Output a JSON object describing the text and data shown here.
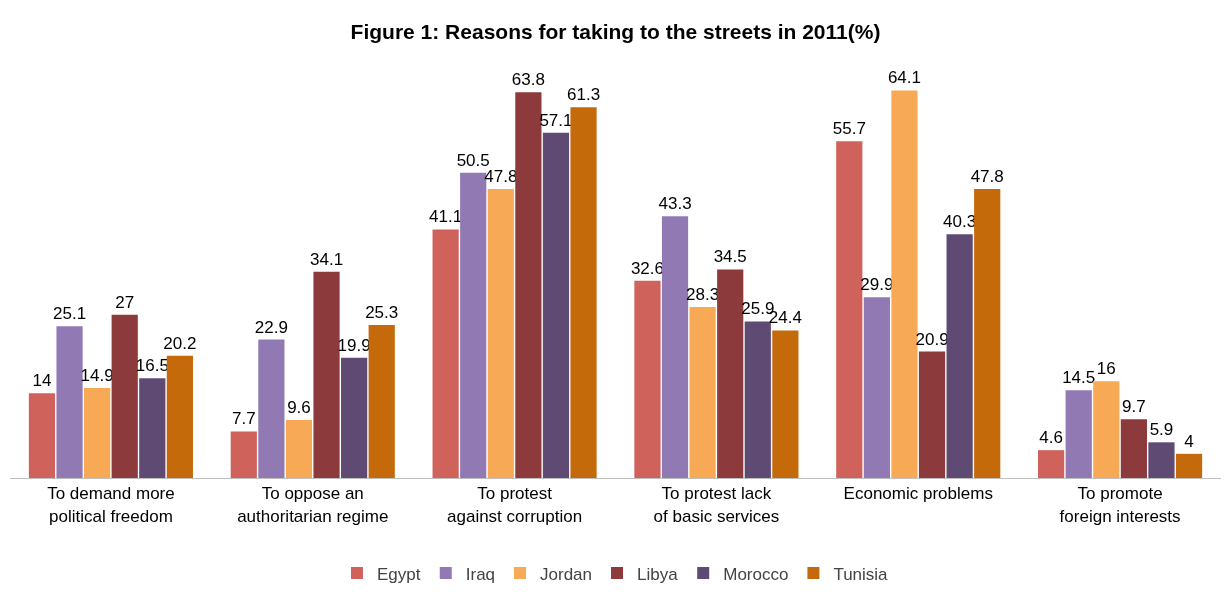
{
  "chart_data": {
    "type": "bar",
    "title": "Figure 1: Reasons for taking to the streets in 2011(%)",
    "categories": [
      "To demand more political freedom",
      "To oppose an authoritarian regime",
      "To protest against corruption",
      "To protest lack of basic services",
      "Economic problems",
      "To promote foreign interests"
    ],
    "series": [
      {
        "name": "Egypt",
        "color": "#d0625c",
        "values": [
          14,
          7.7,
          41.1,
          32.6,
          55.7,
          4.6
        ]
      },
      {
        "name": "Iraq",
        "color": "#917ab4",
        "values": [
          25.1,
          22.9,
          50.5,
          43.3,
          29.9,
          14.5
        ]
      },
      {
        "name": "Jordan",
        "color": "#f8a956",
        "values": [
          14.9,
          9.6,
          47.8,
          28.3,
          64.1,
          16
        ]
      },
      {
        "name": "Libya",
        "color": "#8c3a3b",
        "values": [
          27,
          34.1,
          63.8,
          34.5,
          20.9,
          9.7
        ]
      },
      {
        "name": "Morocco",
        "color": "#5f4a73",
        "values": [
          16.5,
          19.9,
          57.1,
          25.9,
          40.3,
          5.9
        ]
      },
      {
        "name": "Tunisia",
        "color": "#c46a0a",
        "values": [
          20.2,
          25.3,
          61.3,
          24.4,
          47.8,
          4
        ]
      }
    ],
    "data_labels": true,
    "legend": "bottom"
  }
}
